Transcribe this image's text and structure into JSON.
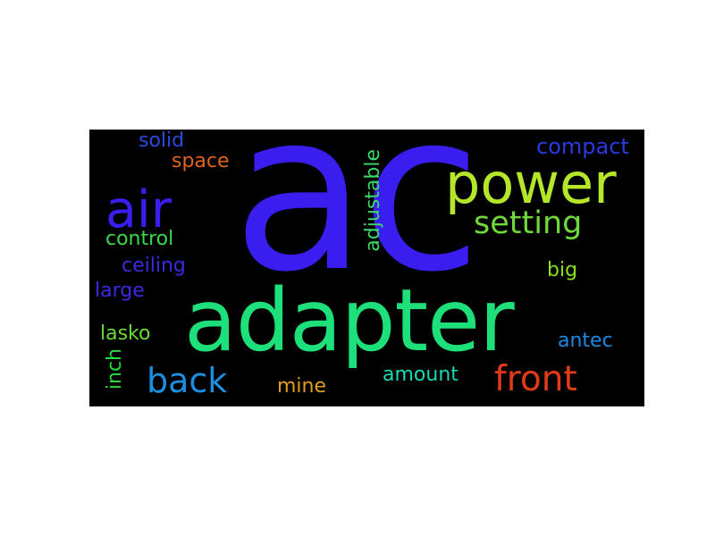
{
  "words": {
    "ac": {
      "text": "ac",
      "color": "#3a1ef0"
    },
    "adapter": {
      "text": "adapter",
      "color": "#1ee07a"
    },
    "power": {
      "text": "power",
      "color": "#b5e62a"
    },
    "air": {
      "text": "air",
      "color": "#3a1ef0"
    },
    "setting": {
      "text": "setting",
      "color": "#6fd93a"
    },
    "front": {
      "text": "front",
      "color": "#e03a1a"
    },
    "back": {
      "text": "back",
      "color": "#1a8fe0"
    },
    "compact": {
      "text": "compact",
      "color": "#2a3ae0"
    },
    "solid": {
      "text": "solid",
      "color": "#2a4ae0"
    },
    "space": {
      "text": "space",
      "color": "#e0641a"
    },
    "control": {
      "text": "control",
      "color": "#3ad94a"
    },
    "ceiling": {
      "text": "ceiling",
      "color": "#3a2ae0"
    },
    "large": {
      "text": "large",
      "color": "#3a2ae0"
    },
    "lasko": {
      "text": "lasko",
      "color": "#6ad93a"
    },
    "mine": {
      "text": "mine",
      "color": "#e0a01a"
    },
    "amount": {
      "text": "amount",
      "color": "#1ad9b5"
    },
    "antec": {
      "text": "antec",
      "color": "#1a8ae0"
    },
    "big": {
      "text": "big",
      "color": "#8ae01a"
    },
    "adjustable": {
      "text": "adjustable",
      "color": "#3ad96a"
    },
    "inch": {
      "text": "inch",
      "color": "#2ad93a"
    }
  },
  "background": "#000000"
}
